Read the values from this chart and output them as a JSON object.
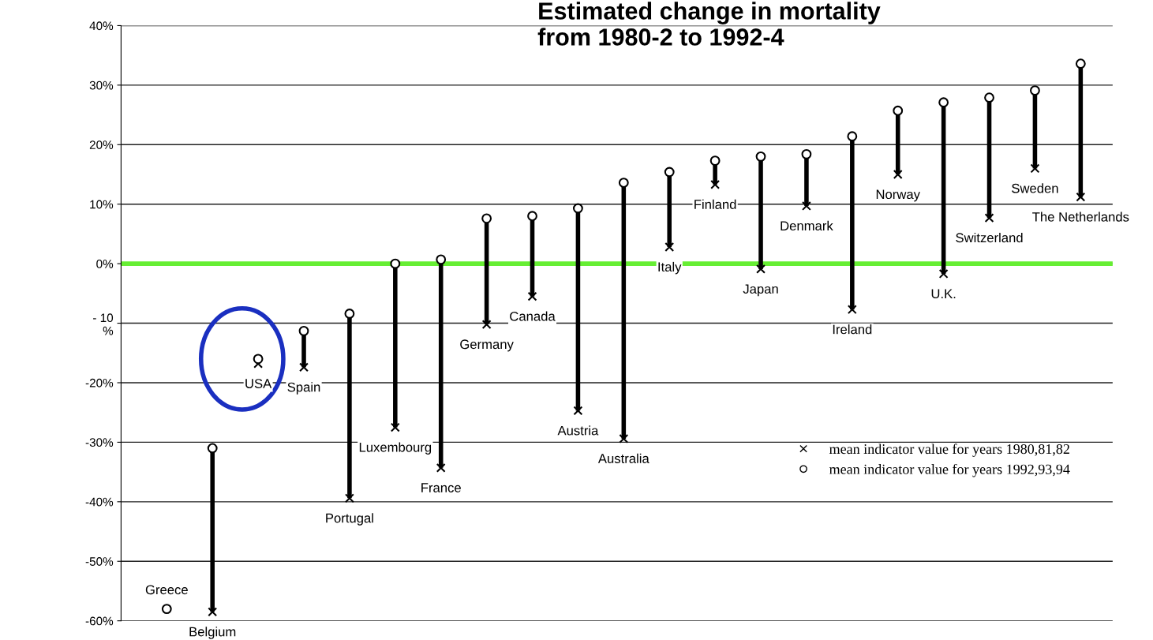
{
  "chart_data": {
    "type": "scatter",
    "title": "Estimated change in mortality\nfrom 1980-2 to 1992-4",
    "categories": [
      "Greece",
      "Belgium",
      "USA",
      "Spain",
      "Portugal",
      "Luxembourg",
      "France",
      "Germany",
      "Canada",
      "Austria",
      "Australia",
      "Italy",
      "Finland",
      "Japan",
      "Denmark",
      "Ireland",
      "Norway",
      "U.K.",
      "Switzerland",
      "Sweden",
      "The Netherlands"
    ],
    "series": [
      {
        "name": "mean indicator value for years 1980,81,82",
        "color": "#000000",
        "marker": "cross",
        "values": [
          null,
          -58.5,
          -16.8,
          -17.4,
          -39.4,
          -27.5,
          -34.3,
          -10.2,
          -5.5,
          -24.7,
          -29.4,
          2.8,
          13.3,
          -0.9,
          9.7,
          -7.7,
          15.0,
          -1.7,
          7.7,
          16.0,
          11.2
        ]
      },
      {
        "name": "mean indicator value for years 1992,93,94",
        "color": "#000000",
        "marker": "circle",
        "values": [
          -58,
          -31,
          -16,
          -11.3,
          -8.4,
          0,
          0.7,
          7.6,
          8.0,
          9.3,
          13.6,
          15.4,
          17.3,
          18.0,
          18.4,
          21.4,
          25.7,
          27.1,
          27.9,
          29.1,
          33.6
        ]
      }
    ],
    "ylim": [
      -60,
      40
    ],
    "yticks": [
      {
        "value": -60,
        "label": "-60%"
      },
      {
        "value": -50,
        "label": "-50%"
      },
      {
        "value": -40,
        "label": "-40%"
      },
      {
        "value": -30,
        "label": "-30%"
      },
      {
        "value": -20,
        "label": "-20%"
      },
      {
        "value": -10,
        "label": "- 10\n%"
      },
      {
        "value": 0,
        "label": "0%"
      },
      {
        "value": 10,
        "label": "10%"
      },
      {
        "value": 20,
        "label": "20%"
      },
      {
        "value": 30,
        "label": "30%"
      },
      {
        "value": 40,
        "label": "40%"
      }
    ],
    "ref_lines": [
      {
        "axis": "y",
        "value": 0,
        "color": "#66ee33"
      }
    ],
    "grid": "y",
    "legend": "bottom right"
  }
}
